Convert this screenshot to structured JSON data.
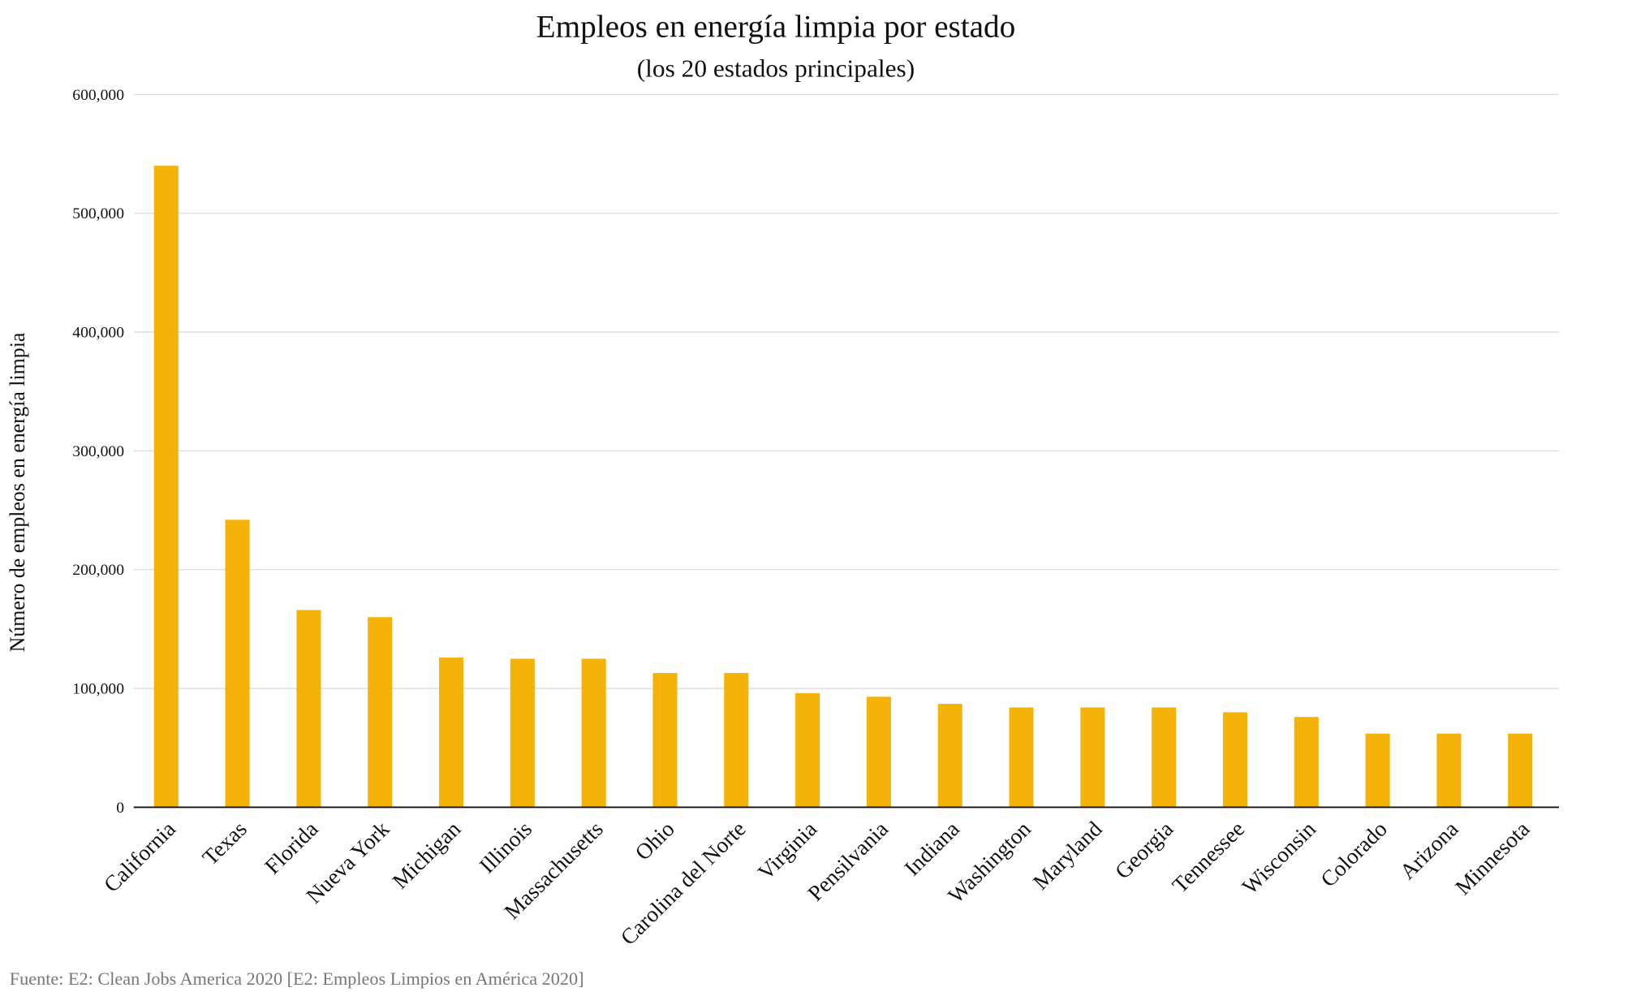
{
  "chart_data": {
    "type": "bar",
    "title": "Empleos en energía limpia por estado",
    "subtitle": "(los 20 estados principales)",
    "xlabel": "",
    "ylabel": "Número de empleos en energía limpia",
    "ylim": [
      0,
      600000
    ],
    "yticks": [
      "0",
      "100,000",
      "200,000",
      "300,000",
      "400,000",
      "500,000",
      "600,000"
    ],
    "grid": true,
    "bar_color": "#F5B30A",
    "categories": [
      "California",
      "Texas",
      "Florida",
      "Nueva York",
      "Michigan",
      "Illinois",
      "Massachusetts",
      "Ohio",
      "Carolina del Norte",
      "Virginia",
      "Pensilvania",
      "Indiana",
      "Washington",
      "Maryland",
      "Georgia",
      "Tennessee",
      "Wisconsin",
      "Colorado",
      "Arizona",
      "Minnesota"
    ],
    "values": [
      540000,
      242000,
      166000,
      160000,
      126000,
      125000,
      125000,
      113000,
      113000,
      96000,
      93000,
      87000,
      84000,
      84000,
      84000,
      80000,
      76000,
      62000,
      62000,
      62000
    ],
    "source": "Fuente: E2: Clean Jobs America 2020 [E2: Empleos Limpios en América 2020]"
  }
}
